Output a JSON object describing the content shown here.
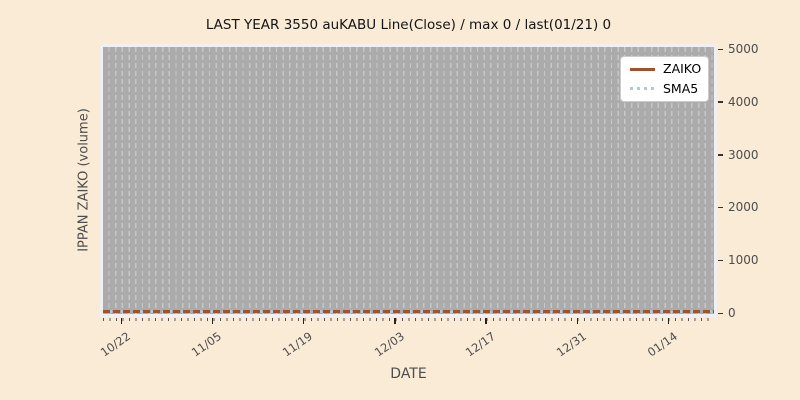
{
  "title": "LAST YEAR 3550 auKABU Line(Close) / max 0 / last(01/21) 0",
  "legend": {
    "items": [
      {
        "label": "ZAIKO",
        "color": "#A0522D",
        "line_style": "solid"
      },
      {
        "label": "SMA5",
        "color": "#A9CCE3",
        "line_style": "dotted"
      }
    ]
  },
  "chart_data": {
    "type": "line",
    "title": "LAST YEAR 3550 auKABU Line(Close) / max 0 / last(01/21) 0",
    "xlabel": "DATE",
    "ylabel": "IPPAN ZAIKO (volume)",
    "x_range": {
      "start": "10/22",
      "end": "01/21"
    },
    "x_tick_labels": [
      "10/22",
      "11/05",
      "11/19",
      "12/03",
      "12/17",
      "12/31",
      "01/14"
    ],
    "y_ticks": [
      0,
      1000,
      2000,
      3000,
      4000,
      5000
    ],
    "ylim": [
      0,
      5000
    ],
    "grid": "vertical-dashed-daily",
    "legend_position": "upper right",
    "series": [
      {
        "name": "ZAIKO",
        "color": "#A0522D",
        "style": "solid",
        "constant_value": 0
      },
      {
        "name": "SMA5",
        "color": "#A9CCE3",
        "style": "dotted",
        "constant_value": 0
      }
    ],
    "max_value": 0,
    "last_date": "01/21",
    "last_value": 0
  },
  "colors": {
    "figure_background": "#FAEBD7",
    "plot_background": "#ABABAB",
    "gridline": "#C7C7C7",
    "axes_frame": "#F0F0F0",
    "tick_label": "#4D4D4D",
    "zaiko_line": "#A0522D",
    "sma5_line": "#A9CCE3"
  }
}
